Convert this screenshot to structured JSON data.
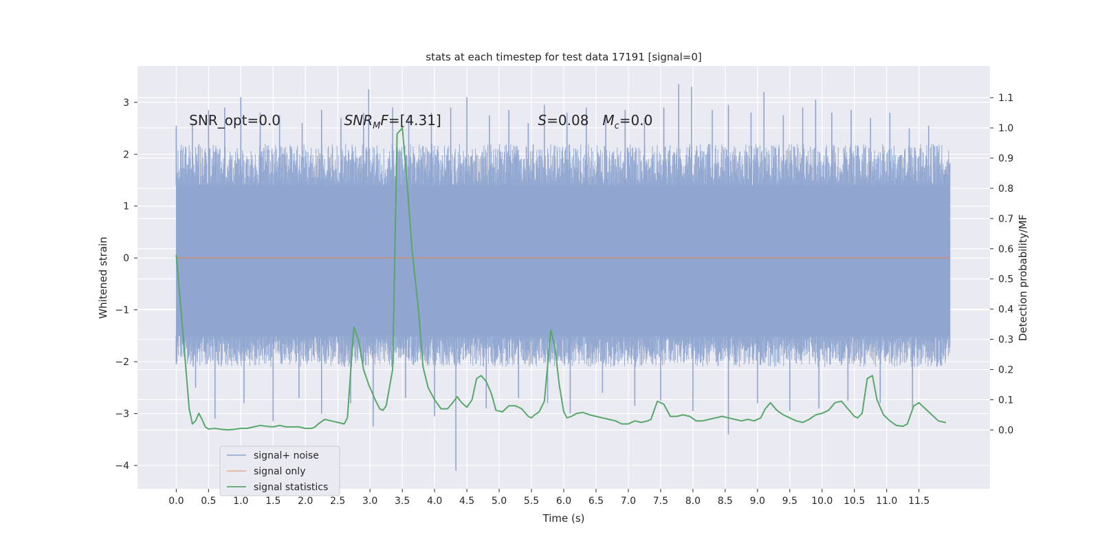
{
  "chart_data": {
    "type": "line",
    "title": "stats at each timestep for test data 17191 [signal=0]",
    "xlabel": "Time (s)",
    "ylabel_left": "Whitened strain",
    "ylabel_right": "Detection probability/MF",
    "xlim": [
      -0.6,
      12.6
    ],
    "ylim_left": [
      -4.45,
      3.7
    ],
    "ylim_right": [
      -0.195,
      1.205
    ],
    "x_ticks": [
      0.0,
      0.5,
      1.0,
      1.5,
      2.0,
      2.5,
      3.0,
      3.5,
      4.0,
      4.5,
      5.0,
      5.5,
      6.0,
      6.5,
      7.0,
      7.5,
      8.0,
      8.5,
      9.0,
      9.5,
      10.0,
      10.5,
      11.0,
      11.5
    ],
    "x_tick_labels": [
      "0.0",
      "0.5",
      "1.0",
      "1.5",
      "2.0",
      "2.5",
      "3.0",
      "3.5",
      "4.0",
      "4.5",
      "5.0",
      "5.5",
      "6.0",
      "6.5",
      "7.0",
      "7.5",
      "8.0",
      "8.5",
      "9.0",
      "9.5",
      "10.0",
      "10.5",
      "11.0",
      "11.5"
    ],
    "y_left_ticks": [
      -4,
      -3,
      -2,
      -1,
      0,
      1,
      2,
      3
    ],
    "y_left_tick_labels": [
      "−4",
      "−3",
      "−2",
      "−1",
      "0",
      "1",
      "2",
      "3"
    ],
    "y_right_ticks": [
      0.0,
      0.1,
      0.2,
      0.3,
      0.4,
      0.5,
      0.6,
      0.7,
      0.8,
      0.9,
      1.0,
      1.1
    ],
    "y_right_tick_labels": [
      "0.0",
      "0.1",
      "0.2",
      "0.3",
      "0.4",
      "0.5",
      "0.6",
      "0.7",
      "0.8",
      "0.9",
      "1.0",
      "1.1"
    ],
    "grid": true,
    "legend_position": "lower-left",
    "annotations": [
      {
        "prefix": "SNR_opt=0.0",
        "x": 0.2,
        "y": 2.65
      },
      {
        "prefix": "SNR",
        "sub": "M",
        "suffix": "F=[4.31]",
        "x": 2.6,
        "y": 2.65
      },
      {
        "prefix": "S=0.08",
        "x": 5.6,
        "y": 2.65
      },
      {
        "prefix": "M",
        "sub": "c",
        "suffix": "=0.0",
        "x": 6.6,
        "y": 2.65
      }
    ],
    "series": [
      {
        "name": "signal+ noise",
        "color": "#8fa5d0",
        "axis": "left",
        "style": "dense-noise",
        "x_range": [
          0.0,
          11.98
        ],
        "core_band": [
          -1.5,
          1.4
        ],
        "envelope": [
          -2.1,
          2.2
        ],
        "peak_spikes": [
          {
            "x": 0.0,
            "y": 2.55
          },
          {
            "x": 0.25,
            "y": 2.6
          },
          {
            "x": 0.5,
            "y": 2.85
          },
          {
            "x": 0.75,
            "y": 2.9
          },
          {
            "x": 1.0,
            "y": 3.1
          },
          {
            "x": 1.3,
            "y": 2.8
          },
          {
            "x": 1.6,
            "y": 2.75
          },
          {
            "x": 1.95,
            "y": 2.6
          },
          {
            "x": 2.25,
            "y": 2.85
          },
          {
            "x": 2.55,
            "y": 2.7
          },
          {
            "x": 2.9,
            "y": 2.8
          },
          {
            "x": 2.98,
            "y": 3.25
          },
          {
            "x": 3.35,
            "y": 2.9
          },
          {
            "x": 3.6,
            "y": 2.75
          },
          {
            "x": 3.95,
            "y": 2.8
          },
          {
            "x": 4.25,
            "y": 2.9
          },
          {
            "x": 4.5,
            "y": 3.1
          },
          {
            "x": 4.85,
            "y": 2.75
          },
          {
            "x": 5.15,
            "y": 2.85
          },
          {
            "x": 5.45,
            "y": 2.6
          },
          {
            "x": 5.7,
            "y": 2.95
          },
          {
            "x": 6.05,
            "y": 2.8
          },
          {
            "x": 6.35,
            "y": 2.9
          },
          {
            "x": 6.65,
            "y": 2.75
          },
          {
            "x": 6.95,
            "y": 2.85
          },
          {
            "x": 7.25,
            "y": 2.7
          },
          {
            "x": 7.55,
            "y": 2.9
          },
          {
            "x": 7.78,
            "y": 3.35
          },
          {
            "x": 7.98,
            "y": 3.3
          },
          {
            "x": 8.3,
            "y": 2.85
          },
          {
            "x": 8.55,
            "y": 2.95
          },
          {
            "x": 8.9,
            "y": 2.8
          },
          {
            "x": 9.1,
            "y": 3.2
          },
          {
            "x": 9.4,
            "y": 2.75
          },
          {
            "x": 9.7,
            "y": 2.9
          },
          {
            "x": 9.9,
            "y": 3.05
          },
          {
            "x": 10.15,
            "y": 2.8
          },
          {
            "x": 10.45,
            "y": 2.85
          },
          {
            "x": 10.75,
            "y": 2.7
          },
          {
            "x": 11.05,
            "y": 2.8
          },
          {
            "x": 11.35,
            "y": 2.5
          },
          {
            "x": 11.65,
            "y": 2.55
          },
          {
            "x": 11.9,
            "y": 1.7
          }
        ],
        "trough_spikes": [
          {
            "x": 0.0,
            "y": -2.05
          },
          {
            "x": 0.3,
            "y": -2.5
          },
          {
            "x": 0.6,
            "y": -3.1
          },
          {
            "x": 1.05,
            "y": -2.8
          },
          {
            "x": 1.5,
            "y": -3.15
          },
          {
            "x": 1.9,
            "y": -2.7
          },
          {
            "x": 2.25,
            "y": -3.0
          },
          {
            "x": 2.7,
            "y": -2.8
          },
          {
            "x": 3.05,
            "y": -3.25
          },
          {
            "x": 3.55,
            "y": -2.7
          },
          {
            "x": 4.0,
            "y": -3.05
          },
          {
            "x": 4.33,
            "y": -4.1
          },
          {
            "x": 4.8,
            "y": -2.9
          },
          {
            "x": 5.3,
            "y": -2.7
          },
          {
            "x": 5.75,
            "y": -2.8
          },
          {
            "x": 6.1,
            "y": -3.0
          },
          {
            "x": 6.6,
            "y": -2.6
          },
          {
            "x": 7.1,
            "y": -2.85
          },
          {
            "x": 7.5,
            "y": -2.75
          },
          {
            "x": 8.0,
            "y": -2.95
          },
          {
            "x": 8.55,
            "y": -3.4
          },
          {
            "x": 9.0,
            "y": -2.8
          },
          {
            "x": 9.5,
            "y": -2.95
          },
          {
            "x": 9.95,
            "y": -2.9
          },
          {
            "x": 10.4,
            "y": -2.75
          },
          {
            "x": 10.9,
            "y": -2.8
          },
          {
            "x": 11.4,
            "y": -2.9
          },
          {
            "x": 11.9,
            "y": -1.6
          }
        ]
      },
      {
        "name": "signal only",
        "color": "#dd8452",
        "axis": "left",
        "x": [
          0.0,
          11.98
        ],
        "y": [
          0.0,
          0.0
        ]
      },
      {
        "name": "signal statistics",
        "color": "#55a868",
        "axis": "right",
        "x": [
          0.0,
          0.12,
          0.2,
          0.25,
          0.3,
          0.35,
          0.4,
          0.45,
          0.5,
          0.6,
          0.7,
          0.8,
          0.9,
          1.0,
          1.1,
          1.2,
          1.3,
          1.4,
          1.5,
          1.6,
          1.7,
          1.8,
          1.9,
          2.0,
          2.1,
          2.15,
          2.2,
          2.3,
          2.4,
          2.5,
          2.6,
          2.65,
          2.75,
          2.82,
          2.9,
          2.98,
          3.08,
          3.15,
          3.2,
          3.25,
          3.35,
          3.42,
          3.5,
          3.58,
          3.65,
          3.75,
          3.82,
          3.9,
          4.0,
          4.1,
          4.2,
          4.28,
          4.35,
          4.42,
          4.5,
          4.58,
          4.65,
          4.72,
          4.8,
          4.88,
          4.95,
          5.05,
          5.15,
          5.25,
          5.35,
          5.45,
          5.5,
          5.55,
          5.62,
          5.7,
          5.8,
          5.86,
          5.93,
          6.0,
          6.05,
          6.12,
          6.2,
          6.3,
          6.4,
          6.5,
          6.6,
          6.7,
          6.8,
          6.9,
          7.0,
          7.1,
          7.2,
          7.3,
          7.35,
          7.45,
          7.55,
          7.65,
          7.75,
          7.85,
          7.95,
          8.05,
          8.15,
          8.25,
          8.35,
          8.45,
          8.55,
          8.65,
          8.75,
          8.85,
          8.95,
          9.05,
          9.12,
          9.2,
          9.3,
          9.4,
          9.5,
          9.6,
          9.7,
          9.8,
          9.9,
          10.0,
          10.1,
          10.2,
          10.3,
          10.4,
          10.5,
          10.55,
          10.62,
          10.7,
          10.78,
          10.85,
          10.95,
          11.05,
          11.15,
          11.25,
          11.32,
          11.42,
          11.5,
          11.6,
          11.7,
          11.8,
          11.9,
          11.92
        ],
        "y": [
          0.58,
          0.28,
          0.07,
          0.02,
          0.03,
          0.055,
          0.035,
          0.01,
          0.003,
          0.005,
          0.002,
          0.0,
          0.002,
          0.005,
          0.005,
          0.01,
          0.015,
          0.012,
          0.01,
          0.015,
          0.01,
          0.01,
          0.01,
          0.005,
          0.005,
          0.01,
          0.02,
          0.035,
          0.03,
          0.025,
          0.02,
          0.04,
          0.34,
          0.3,
          0.2,
          0.15,
          0.1,
          0.07,
          0.065,
          0.08,
          0.2,
          0.98,
          1.0,
          0.8,
          0.6,
          0.4,
          0.21,
          0.14,
          0.1,
          0.07,
          0.07,
          0.09,
          0.11,
          0.09,
          0.075,
          0.1,
          0.17,
          0.18,
          0.16,
          0.12,
          0.065,
          0.06,
          0.08,
          0.08,
          0.07,
          0.045,
          0.04,
          0.05,
          0.06,
          0.095,
          0.33,
          0.28,
          0.15,
          0.06,
          0.04,
          0.045,
          0.055,
          0.058,
          0.05,
          0.045,
          0.04,
          0.035,
          0.03,
          0.02,
          0.02,
          0.03,
          0.025,
          0.03,
          0.035,
          0.095,
          0.085,
          0.045,
          0.045,
          0.05,
          0.045,
          0.03,
          0.03,
          0.035,
          0.04,
          0.045,
          0.04,
          0.035,
          0.03,
          0.035,
          0.03,
          0.04,
          0.07,
          0.09,
          0.065,
          0.05,
          0.04,
          0.03,
          0.025,
          0.035,
          0.05,
          0.055,
          0.065,
          0.09,
          0.095,
          0.07,
          0.045,
          0.04,
          0.055,
          0.17,
          0.18,
          0.1,
          0.05,
          0.03,
          0.015,
          0.012,
          0.02,
          0.08,
          0.09,
          0.07,
          0.05,
          0.03,
          0.025,
          0.025
        ]
      }
    ]
  }
}
